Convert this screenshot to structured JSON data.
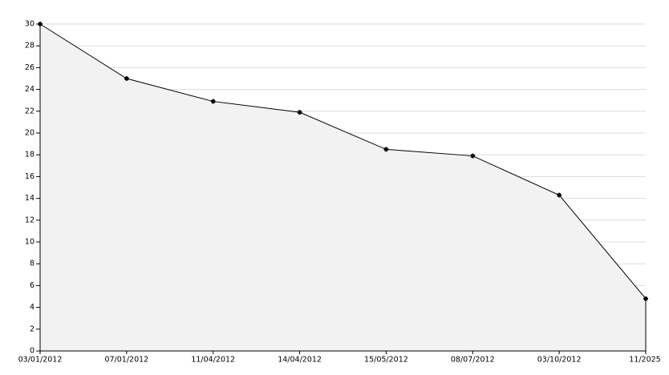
{
  "chart_data": {
    "type": "area",
    "categories": [
      "03/01/2012",
      "07/01/2012",
      "11/04/2012",
      "14/04/2012",
      "15/05/2012",
      "08/07/2012",
      "03/10/2012",
      "11/2025"
    ],
    "values": [
      30,
      25,
      22.9,
      21.9,
      18.5,
      17.9,
      14.3,
      4.8
    ],
    "color": "#000000",
    "fill": "#f2f2f2",
    "ylim": [
      0,
      30
    ],
    "yticks": [
      0,
      2,
      4,
      6,
      8,
      10,
      12,
      14,
      16,
      18,
      20,
      22,
      24,
      26,
      28,
      30
    ],
    "grid": true
  }
}
